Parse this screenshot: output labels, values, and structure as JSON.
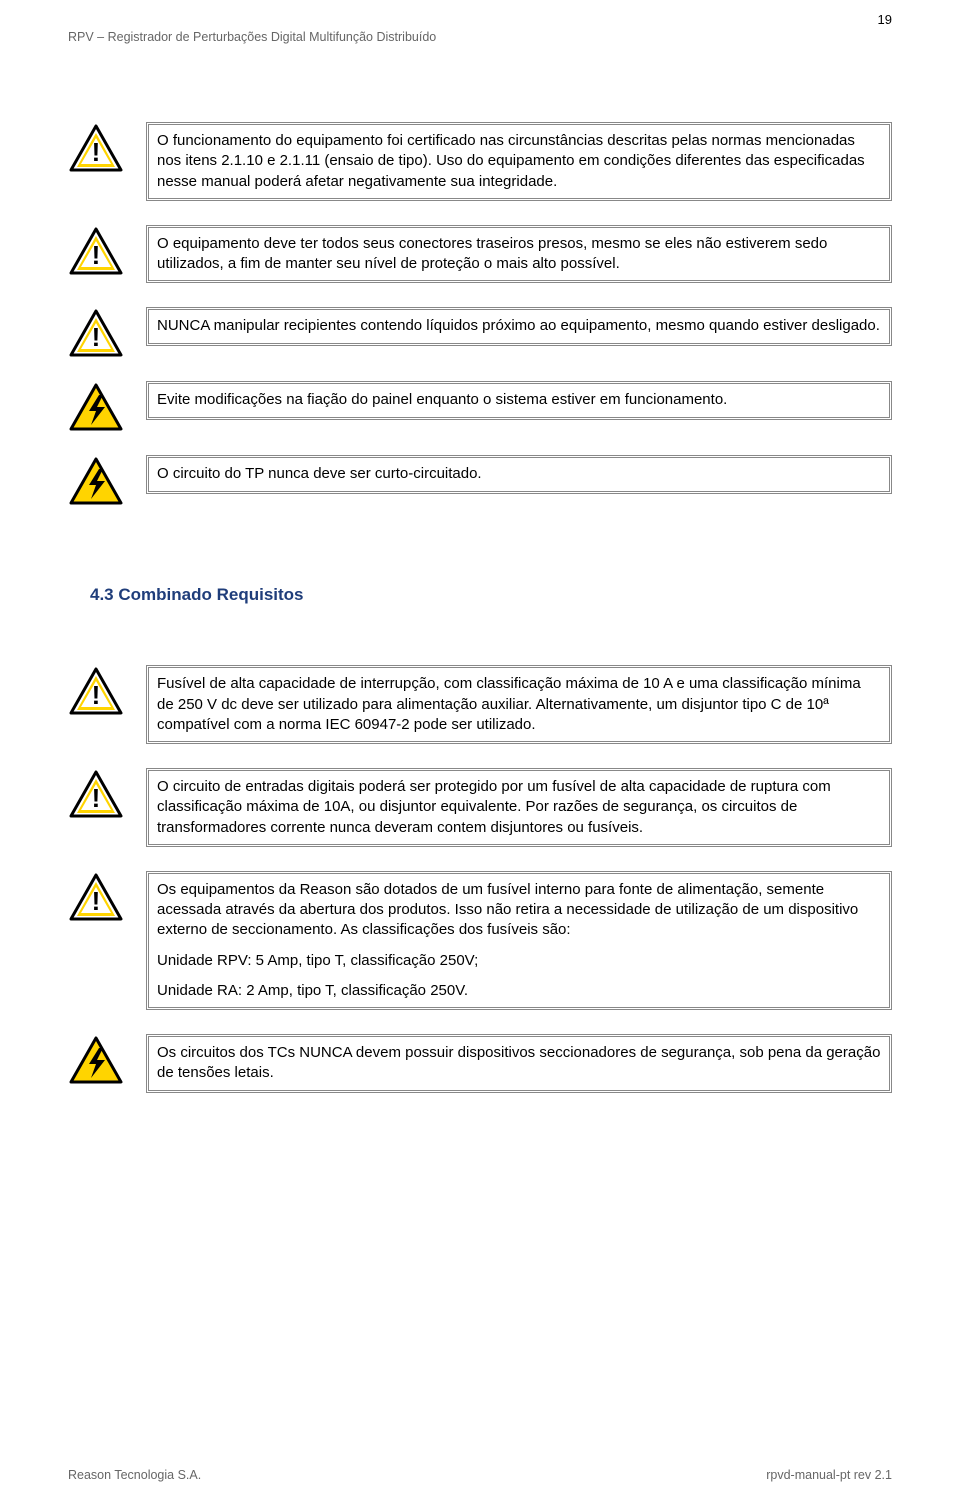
{
  "page": {
    "number": "19",
    "header": "RPV – Registrador de Perturbações Digital Multifunção Distribuído",
    "footer_left": "Reason Tecnologia S.A.",
    "footer_right": "rpvd-manual-pt rev 2.1"
  },
  "icons": {
    "caution": {
      "triangle_stroke": "#000000",
      "triangle_fill": "#ffffff",
      "band_fill": "#ffd400",
      "mark": "!"
    },
    "shock": {
      "triangle_stroke": "#000000",
      "triangle_fill": "#ffd400",
      "bolt_fill": "#000000"
    }
  },
  "section": {
    "number": "4.3",
    "title": "Combinado Requisitos"
  },
  "warnings_a": [
    {
      "type": "caution",
      "text": "O funcionamento do equipamento foi certificado nas circunstâncias descritas pelas normas mencionadas nos itens 2.1.10 e 2.1.11 (ensaio de tipo). Uso do equipamento em condições diferentes das especificadas nesse manual poderá afetar negativamente sua integridade."
    },
    {
      "type": "caution",
      "text": "O equipamento deve ter todos seus conectores traseiros presos, mesmo se eles não estiverem sedo utilizados, a fim de manter seu nível de proteção o mais alto possível."
    },
    {
      "type": "caution",
      "text": "NUNCA manipular recipientes contendo líquidos próximo ao equipamento, mesmo quando estiver desligado."
    },
    {
      "type": "shock",
      "text": "Evite modificações na fiação do painel enquanto o sistema estiver em funcionamento."
    },
    {
      "type": "shock",
      "text": "O circuito do TP nunca deve ser curto-circuitado."
    }
  ],
  "warnings_b": [
    {
      "type": "caution",
      "text": "Fusível de alta capacidade de interrupção, com classificação máxima de 10 A e uma classificação mínima de 250 V dc deve ser utilizado para alimentação auxiliar. Alternativamente, um disjuntor tipo C de 10ª compatível com a norma IEC 60947-2 pode ser utilizado."
    },
    {
      "type": "caution",
      "text": "O circuito de entradas digitais poderá ser protegido por um fusível de alta capacidade de ruptura com classificação máxima de 10A, ou disjuntor equivalente. Por razões de segurança, os circuitos de transformadores corrente nunca deveram contem disjuntores ou fusíveis."
    },
    {
      "type": "caution",
      "text": "Os equipamentos da Reason são dotados de um fusível interno para fonte de alimentação, semente acessada através da abertura dos produtos. Isso não retira a necessidade de utilização de um dispositivo externo de seccionamento. As classificações dos fusíveis são:\nUnidade RPV: 5 Amp, tipo T, classificação 250V;\nUnidade RA: 2 Amp, tipo T, classificação 250V."
    },
    {
      "type": "shock",
      "text": "Os circuitos dos TCs NUNCA devem possuir dispositivos seccionadores de segurança, sob pena da geração de tensões letais."
    }
  ]
}
